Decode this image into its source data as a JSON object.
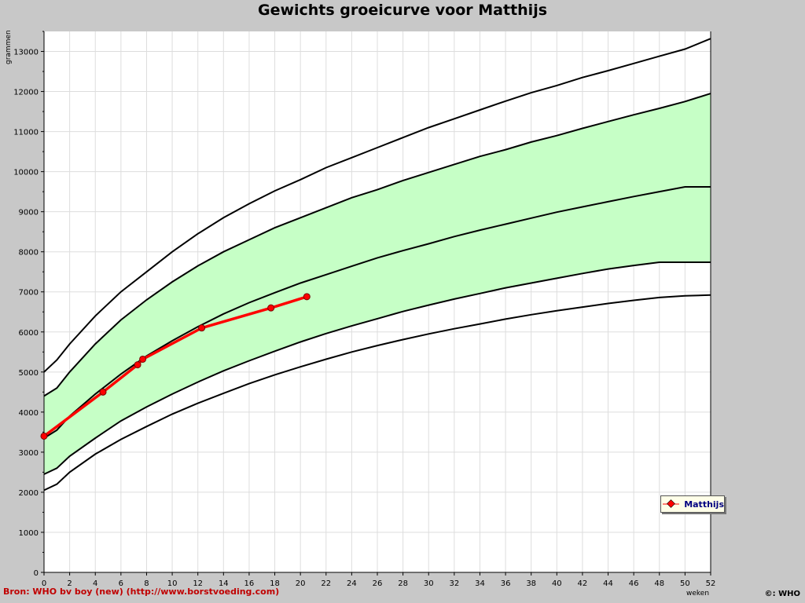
{
  "chart_data": {
    "type": "line",
    "title": "Gewichts groeicurve voor Matthijs",
    "ylabel": "grammen",
    "xlabel": "weken",
    "xlim": [
      0,
      52
    ],
    "ylim": [
      0,
      13500
    ],
    "x_ticks": [
      0,
      2,
      4,
      6,
      8,
      10,
      12,
      14,
      16,
      18,
      20,
      22,
      24,
      26,
      28,
      30,
      32,
      34,
      36,
      38,
      40,
      42,
      44,
      46,
      48,
      50,
      52
    ],
    "y_ticks": [
      0,
      1000,
      2000,
      3000,
      4000,
      5000,
      6000,
      7000,
      8000,
      9000,
      10000,
      11000,
      12000,
      13000
    ],
    "grid": true,
    "legend_position": "bottom-right",
    "reference_x": [
      0,
      1,
      2,
      4,
      6,
      8,
      10,
      12,
      14,
      16,
      18,
      20,
      22,
      24,
      26,
      28,
      30,
      32,
      34,
      36,
      38,
      40,
      42,
      44,
      46,
      48,
      50,
      52
    ],
    "reference_curves": [
      {
        "id": "upper-outer",
        "values": [
          5000,
          5300,
          5700,
          6400,
          7000,
          7500,
          8000,
          8450,
          8850,
          9200,
          9520,
          9800,
          10100,
          10350,
          10600,
          10850,
          11100,
          11320,
          11540,
          11760,
          11970,
          12150,
          12350,
          12520,
          12700,
          12880,
          13060,
          13320
        ]
      },
      {
        "id": "upper-band",
        "values": [
          4400,
          4600,
          5000,
          5700,
          6300,
          6800,
          7250,
          7650,
          8000,
          8300,
          8600,
          8850,
          9100,
          9350,
          9550,
          9780,
          9980,
          10180,
          10380,
          10550,
          10740,
          10900,
          11080,
          11250,
          11420,
          11580,
          11750,
          11950
        ]
      },
      {
        "id": "median",
        "values": [
          3350,
          3550,
          3900,
          4450,
          4950,
          5400,
          5780,
          6130,
          6450,
          6730,
          6980,
          7220,
          7430,
          7640,
          7850,
          8030,
          8200,
          8380,
          8540,
          8690,
          8840,
          8990,
          9120,
          9250,
          9380,
          9500,
          9620,
          9620
        ]
      },
      {
        "id": "lower-band",
        "values": [
          2450,
          2600,
          2900,
          3350,
          3780,
          4130,
          4450,
          4750,
          5030,
          5280,
          5520,
          5750,
          5960,
          6150,
          6330,
          6510,
          6670,
          6820,
          6960,
          7100,
          7220,
          7340,
          7460,
          7570,
          7660,
          7740,
          7740,
          7740
        ]
      },
      {
        "id": "lower-outer",
        "values": [
          2050,
          2200,
          2500,
          2950,
          3320,
          3640,
          3950,
          4220,
          4470,
          4710,
          4930,
          5130,
          5320,
          5500,
          5660,
          5810,
          5950,
          6080,
          6200,
          6320,
          6430,
          6530,
          6620,
          6710,
          6790,
          6860,
          6900,
          6920
        ]
      }
    ],
    "series": [
      {
        "name": "Matthijs",
        "color": "#ff0000",
        "x": [
          0,
          4.6,
          7.3,
          7.7,
          12.3,
          17.7,
          20.5
        ],
        "values": [
          3400,
          4500,
          5180,
          5320,
          6100,
          6600,
          6880
        ]
      }
    ],
    "colors": {
      "background": "#c8c8c8",
      "plot_background": "#ffffff",
      "band_fill": "#c6ffc6",
      "grid": "#dddddd",
      "reference_line": "#000000",
      "series_line": "#ff0000",
      "source_text": "#c00000",
      "legend_text": "#000080"
    },
    "legend": {
      "entries": [
        "Matthijs"
      ]
    }
  },
  "footer": {
    "source": "Bron: WHO bv boy (new) (http://www.borstvoeding.com)",
    "copyright": "©: WHO"
  }
}
